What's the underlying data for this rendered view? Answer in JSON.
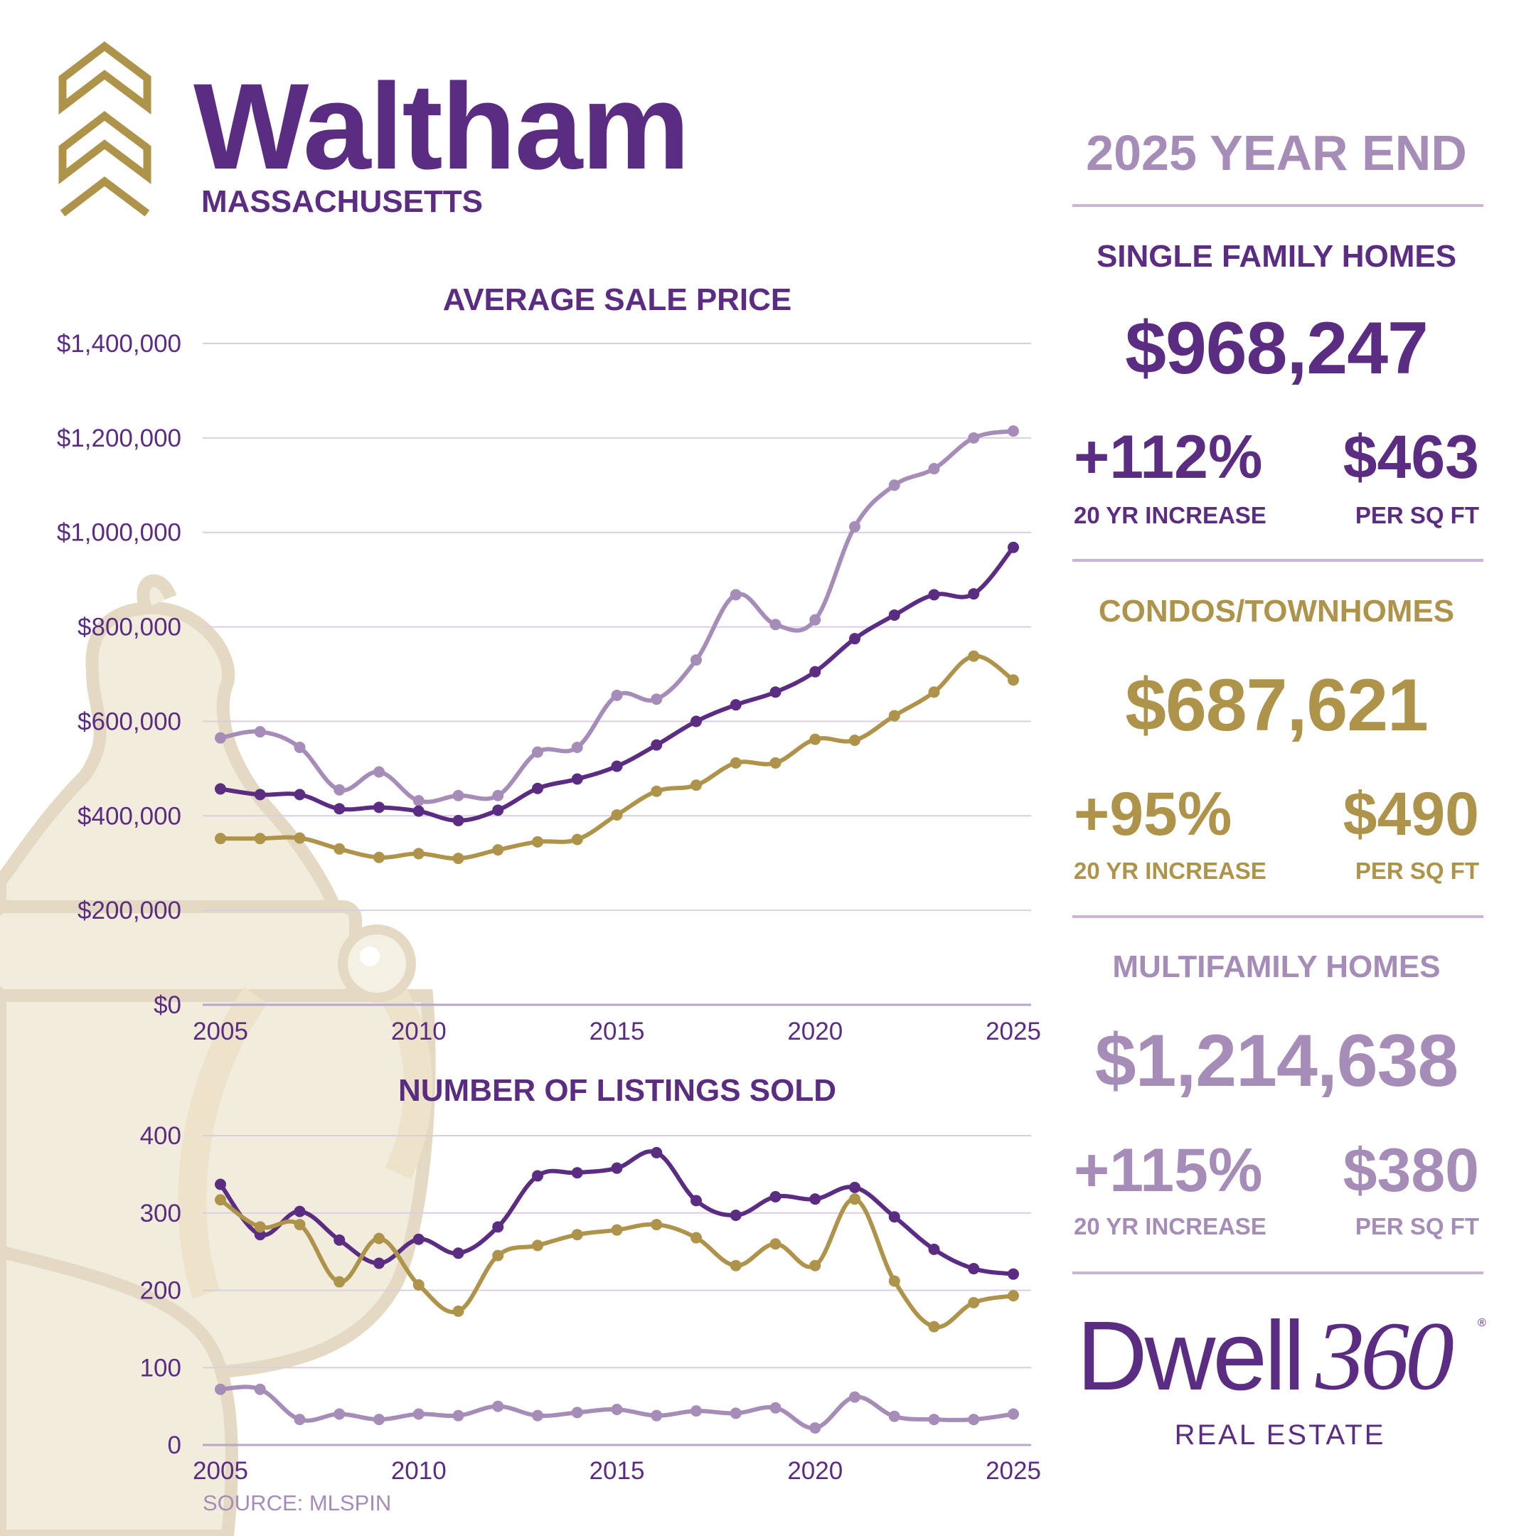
{
  "header": {
    "city": "Waltham",
    "state": "MASSACHUSETTS"
  },
  "report": {
    "period": "2025 YEAR END"
  },
  "sections": [
    {
      "key": "single_family",
      "title": "SINGLE FAMILY HOMES",
      "avg_price": "$968,247",
      "increase": "+112%",
      "increase_label": "20 YR INCREASE",
      "per_sqft": "$463",
      "per_sqft_label": "PER SQ FT",
      "color": "#5b2d82"
    },
    {
      "key": "condos",
      "title": "CONDOS/TOWNHOMES",
      "avg_price": "$687,621",
      "increase": "+95%",
      "increase_label": "20 YR INCREASE",
      "per_sqft": "$490",
      "per_sqft_label": "PER SQ FT",
      "color": "#ae934a"
    },
    {
      "key": "multifamily",
      "title": "MULTIFAMILY HOMES",
      "avg_price": "$1,214,638",
      "increase": "+115%",
      "increase_label": "20 YR INCREASE",
      "per_sqft": "$380",
      "per_sqft_label": "PER SQ FT",
      "color": "#a58db8"
    }
  ],
  "brand": {
    "name_main": "Dwell",
    "name_num": "360",
    "reg": "®",
    "tagline": "REAL ESTATE"
  },
  "source": "SOURCE: MLSPIN",
  "chart_data": [
    {
      "type": "line",
      "title": "AVERAGE SALE PRICE",
      "x": [
        2005,
        2006,
        2007,
        2008,
        2009,
        2010,
        2011,
        2012,
        2013,
        2014,
        2015,
        2016,
        2017,
        2018,
        2019,
        2020,
        2021,
        2022,
        2023,
        2024,
        2025
      ],
      "xticks": [
        "2005",
        "2010",
        "2015",
        "2020",
        "2025"
      ],
      "xtick_values": [
        2005,
        2010,
        2015,
        2020,
        2025
      ],
      "yticks": [
        "$1,400,000",
        "$1,200,000",
        "$1,000,000",
        "$800,000",
        "$600,000",
        "$400,000",
        "$200,000",
        "$0"
      ],
      "ytick_values": [
        1400000,
        1200000,
        1000000,
        800000,
        600000,
        400000,
        200000,
        0
      ],
      "ylim": [
        0,
        1400000
      ],
      "grid": true,
      "legend": "none",
      "series": [
        {
          "key": "multifamily",
          "color": "#a58db8",
          "values": [
            565000,
            578000,
            545000,
            455000,
            493000,
            432000,
            443000,
            443000,
            535000,
            545000,
            655000,
            647000,
            730000,
            868000,
            805000,
            815000,
            1012000,
            1100000,
            1135000,
            1200000,
            1214638
          ]
        },
        {
          "key": "single_family",
          "color": "#5b2d82",
          "values": [
            457000,
            445000,
            445000,
            415000,
            418000,
            410000,
            390000,
            412000,
            458000,
            478000,
            505000,
            550000,
            600000,
            635000,
            662000,
            705000,
            775000,
            825000,
            868000,
            870000,
            968247
          ]
        },
        {
          "key": "condos",
          "color": "#ae934a",
          "values": [
            352000,
            352000,
            353000,
            330000,
            312000,
            320000,
            310000,
            328000,
            345000,
            350000,
            402000,
            452000,
            465000,
            512000,
            512000,
            562000,
            560000,
            612000,
            662000,
            738000,
            687621
          ]
        }
      ]
    },
    {
      "type": "line",
      "title": "NUMBER OF LISTINGS SOLD",
      "x": [
        2005,
        2006,
        2007,
        2008,
        2009,
        2010,
        2011,
        2012,
        2013,
        2014,
        2015,
        2016,
        2017,
        2018,
        2019,
        2020,
        2021,
        2022,
        2023,
        2024,
        2025
      ],
      "xticks": [
        "2005",
        "2010",
        "2015",
        "2020",
        "2025"
      ],
      "xtick_values": [
        2005,
        2010,
        2015,
        2020,
        2025
      ],
      "yticks": [
        "400",
        "300",
        "200",
        "100",
        "0"
      ],
      "ytick_values": [
        400,
        300,
        200,
        100,
        0
      ],
      "ylim": [
        0,
        400
      ],
      "grid": true,
      "legend": "none",
      "series": [
        {
          "key": "single_family",
          "color": "#5b2d82",
          "values": [
            337,
            272,
            302,
            265,
            235,
            266,
            248,
            282,
            348,
            352,
            358,
            378,
            316,
            297,
            321,
            318,
            333,
            295,
            253,
            228,
            221
          ]
        },
        {
          "key": "condos",
          "color": "#ae934a",
          "values": [
            317,
            282,
            285,
            211,
            267,
            207,
            173,
            245,
            258,
            272,
            278,
            285,
            268,
            232,
            260,
            232,
            318,
            212,
            153,
            184,
            193
          ]
        },
        {
          "key": "multifamily",
          "color": "#a58db8",
          "values": [
            72,
            72,
            33,
            40,
            33,
            40,
            38,
            50,
            38,
            42,
            46,
            38,
            44,
            41,
            48,
            22,
            62,
            37,
            33,
            33,
            40
          ]
        }
      ]
    }
  ]
}
